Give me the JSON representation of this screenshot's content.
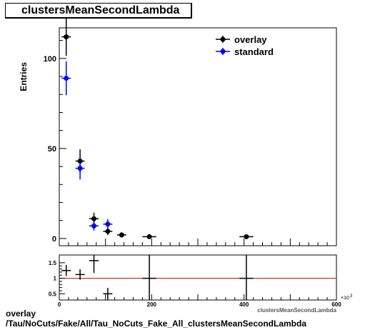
{
  "chart_data": [
    {
      "type": "scatter",
      "title": "clustersMeanSecondLambda",
      "xlabel": "clustersMeanSecondLambda",
      "ylabel": "Entries",
      "x_multiplier_label": "×10",
      "x_multiplier_exponent": "3",
      "xlim": [
        0,
        600
      ],
      "ylim": [
        -4,
        117
      ],
      "xticks": [
        0,
        200,
        400,
        600
      ],
      "yticks": [
        0,
        50,
        100
      ],
      "legend": {
        "position": "top-right",
        "entries": [
          "overlay",
          "standard"
        ]
      },
      "series": [
        {
          "name": "overlay",
          "color": "#000000",
          "points": [
            {
              "x": 15,
              "y": 112,
              "xerr": 10,
              "yerr": 10.5
            },
            {
              "x": 45,
              "y": 43,
              "xerr": 10,
              "yerr": 6.5
            },
            {
              "x": 75,
              "y": 11,
              "xerr": 10,
              "yerr": 3.3
            },
            {
              "x": 105,
              "y": 4,
              "xerr": 10,
              "yerr": 2
            },
            {
              "x": 135,
              "y": 2,
              "xerr": 10,
              "yerr": 1.4
            },
            {
              "x": 195,
              "y": 1,
              "xerr": 15,
              "yerr": 1
            },
            {
              "x": 405,
              "y": 1,
              "xerr": 15,
              "yerr": 1
            }
          ]
        },
        {
          "name": "standard",
          "color": "#0000ff",
          "points": [
            {
              "x": 15,
              "y": 89,
              "xerr": 10,
              "yerr": 9.4
            },
            {
              "x": 45,
              "y": 39,
              "xerr": 10,
              "yerr": 6.2
            },
            {
              "x": 75,
              "y": 7,
              "xerr": 10,
              "yerr": 2.6
            },
            {
              "x": 105,
              "y": 8,
              "xerr": 10,
              "yerr": 2.8
            }
          ]
        }
      ]
    },
    {
      "type": "scatter",
      "title": "",
      "xlim": [
        0,
        600
      ],
      "ylim": [
        0.3,
        1.75
      ],
      "xticks": [
        0,
        200,
        400,
        600
      ],
      "yticks": [
        0.5,
        1,
        1.5
      ],
      "reference_line": {
        "y": 1,
        "color": "#cc0000"
      },
      "series": [
        {
          "name": "",
          "color": "#000000",
          "points": [
            {
              "x": 15,
              "y": 1.25,
              "xerr": 10,
              "yerr": 0.18
            },
            {
              "x": 45,
              "y": 1.12,
              "xerr": 10,
              "yerr": 0.17
            },
            {
              "x": 75,
              "y": 1.57,
              "xerr": 10,
              "yerr": 0.4
            },
            {
              "x": 105,
              "y": 0.5,
              "xerr": 10,
              "yerr": 0.19
            },
            {
              "x": 195,
              "y": 1.0,
              "xerr": 15,
              "yerr": 1.0
            },
            {
              "x": 405,
              "y": 1.0,
              "xerr": 15,
              "yerr": 1.0
            }
          ]
        }
      ]
    }
  ],
  "footer": {
    "line1": "overlay",
    "line2": "/Tau/NoCuts/Fake/All/Tau_NoCuts_Fake_All_clustersMeanSecondLambda"
  }
}
